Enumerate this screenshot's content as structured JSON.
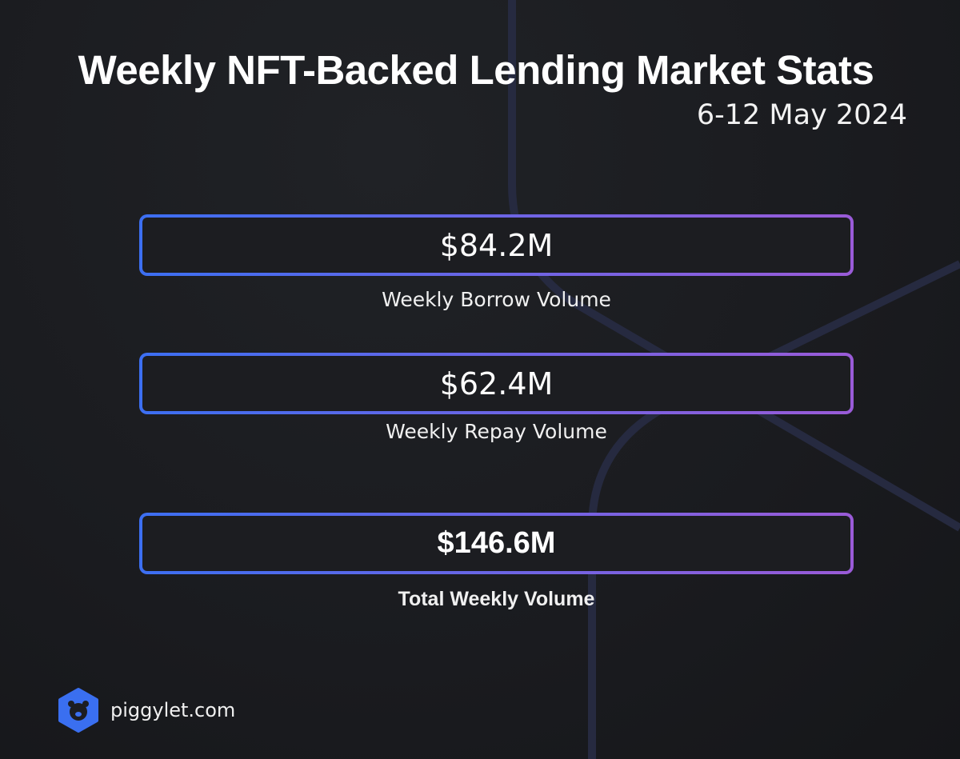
{
  "header": {
    "title": "Weekly NFT-Backed Lending Market Stats",
    "subtitle": "6-12 May 2024"
  },
  "stats": [
    {
      "value": "$84.2M",
      "label": "Weekly Borrow Volume"
    },
    {
      "value": "$62.4M",
      "label": "Weekly Repay Volume"
    },
    {
      "value": "$146.6M",
      "label": "Total Weekly Volume"
    }
  ],
  "footer": {
    "brand": "piggylet.com"
  }
}
